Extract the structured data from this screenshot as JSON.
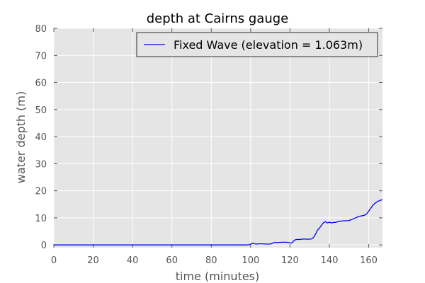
{
  "chart_data": {
    "type": "line",
    "title": "depth at Cairns gauge",
    "xlabel": "time (minutes)",
    "ylabel": "water depth (m)",
    "xlim": [
      0,
      167
    ],
    "ylim": [
      -1,
      80
    ],
    "xticks": [
      0,
      20,
      40,
      60,
      80,
      100,
      120,
      140,
      160
    ],
    "yticks": [
      0,
      10,
      20,
      30,
      40,
      50,
      60,
      70,
      80
    ],
    "grid": true,
    "legend_position": "top-right",
    "background_color": "#e5e5e5",
    "series": [
      {
        "name": "Fixed Wave (elevation = 1.063m)",
        "color": "#0000ff",
        "x": [
          0,
          20,
          40,
          60,
          80,
          99,
          100,
          101,
          102,
          103,
          104,
          106,
          108,
          110,
          112,
          114,
          116,
          118,
          120,
          121,
          122,
          123,
          125,
          127,
          129,
          131,
          132,
          133,
          134,
          135,
          136,
          137,
          138,
          139,
          140,
          141,
          142,
          143,
          145,
          147,
          150,
          152,
          155,
          158,
          159,
          160,
          161,
          162,
          163,
          164,
          165,
          166,
          167
        ],
        "y": [
          0,
          0,
          0,
          0,
          0,
          0,
          0.3,
          0.6,
          0.4,
          0.3,
          0.4,
          0.4,
          0.3,
          0.3,
          0.9,
          0.9,
          1.0,
          1.0,
          0.8,
          0.7,
          1.6,
          2.0,
          2.0,
          2.2,
          2.1,
          2.2,
          2.8,
          4.0,
          5.5,
          6.2,
          7.3,
          8.2,
          8.6,
          8.1,
          8.4,
          8.1,
          8.3,
          8.3,
          8.7,
          8.9,
          9.0,
          9.6,
          10.5,
          11.0,
          11.5,
          12.5,
          13.5,
          14.5,
          15.3,
          15.8,
          16.2,
          16.5,
          16.7
        ]
      }
    ]
  }
}
